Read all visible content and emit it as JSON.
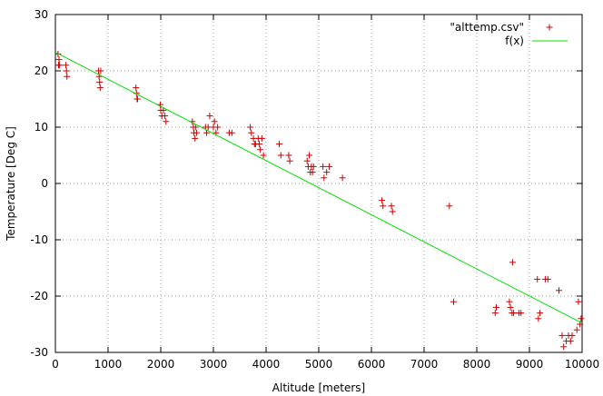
{
  "chart_data": {
    "type": "scatter",
    "xlabel": "Altitude [meters]",
    "ylabel": "Temperature [Deg C]",
    "xlim": [
      0,
      10000
    ],
    "ylim": [
      -30,
      30
    ],
    "xticks": [
      0,
      1000,
      2000,
      3000,
      4000,
      5000,
      6000,
      7000,
      8000,
      9000,
      10000
    ],
    "yticks": [
      -30,
      -20,
      -10,
      0,
      10,
      20,
      30
    ],
    "grid": true,
    "legend_position": "top-right",
    "series": [
      {
        "name": "\"alttemp.csv\"",
        "kind": "points",
        "marker": "+",
        "color": "#cc0000",
        "points": [
          [
            50,
            23
          ],
          [
            60,
            21
          ],
          [
            70,
            22
          ],
          [
            80,
            21
          ],
          [
            200,
            21
          ],
          [
            210,
            20
          ],
          [
            220,
            19
          ],
          [
            820,
            20
          ],
          [
            830,
            19
          ],
          [
            840,
            18
          ],
          [
            850,
            17
          ],
          [
            860,
            20
          ],
          [
            1530,
            17
          ],
          [
            1540,
            16
          ],
          [
            1550,
            15
          ],
          [
            1560,
            15
          ],
          [
            1990,
            14
          ],
          [
            2000,
            13
          ],
          [
            2020,
            12
          ],
          [
            2050,
            13
          ],
          [
            2080,
            12
          ],
          [
            2100,
            11
          ],
          [
            2600,
            11
          ],
          [
            2620,
            10
          ],
          [
            2630,
            9
          ],
          [
            2650,
            8
          ],
          [
            2660,
            10
          ],
          [
            2680,
            9
          ],
          [
            2850,
            10
          ],
          [
            2870,
            9
          ],
          [
            2900,
            10
          ],
          [
            2930,
            12
          ],
          [
            3000,
            10
          ],
          [
            3020,
            11
          ],
          [
            3050,
            9
          ],
          [
            3080,
            10
          ],
          [
            3300,
            9
          ],
          [
            3350,
            9
          ],
          [
            3700,
            10
          ],
          [
            3720,
            9
          ],
          [
            3760,
            8
          ],
          [
            3780,
            7
          ],
          [
            3800,
            7
          ],
          [
            3850,
            8
          ],
          [
            3870,
            7
          ],
          [
            3890,
            6
          ],
          [
            3920,
            8
          ],
          [
            3950,
            5
          ],
          [
            4250,
            7
          ],
          [
            4280,
            5
          ],
          [
            4430,
            5
          ],
          [
            4450,
            4
          ],
          [
            4780,
            4
          ],
          [
            4800,
            3
          ],
          [
            4820,
            5
          ],
          [
            4840,
            2
          ],
          [
            4860,
            3
          ],
          [
            4880,
            2
          ],
          [
            4900,
            3
          ],
          [
            5080,
            3
          ],
          [
            5100,
            1
          ],
          [
            5150,
            2
          ],
          [
            5200,
            3
          ],
          [
            5450,
            1
          ],
          [
            6200,
            -3
          ],
          [
            6220,
            -4
          ],
          [
            6380,
            -4
          ],
          [
            6400,
            -5
          ],
          [
            7480,
            -4
          ],
          [
            7560,
            -21
          ],
          [
            8350,
            -23
          ],
          [
            8370,
            -22
          ],
          [
            8620,
            -21
          ],
          [
            8640,
            -22
          ],
          [
            8670,
            -23
          ],
          [
            8700,
            -23
          ],
          [
            8680,
            -14
          ],
          [
            8800,
            -23
          ],
          [
            8840,
            -23
          ],
          [
            9150,
            -17
          ],
          [
            9170,
            -24
          ],
          [
            9200,
            -23
          ],
          [
            9300,
            -17
          ],
          [
            9350,
            -17
          ],
          [
            9560,
            -19
          ],
          [
            9620,
            -27
          ],
          [
            9650,
            -29
          ],
          [
            9700,
            -28
          ],
          [
            9740,
            -27
          ],
          [
            9780,
            -28
          ],
          [
            9810,
            -27
          ],
          [
            9900,
            -26
          ],
          [
            9930,
            -21
          ],
          [
            9960,
            -25
          ],
          [
            9980,
            -24
          ]
        ]
      },
      {
        "name": "f(x)",
        "kind": "line",
        "color": "#00e000",
        "points": [
          [
            0,
            23.3
          ],
          [
            10000,
            -24.8
          ]
        ]
      }
    ]
  }
}
